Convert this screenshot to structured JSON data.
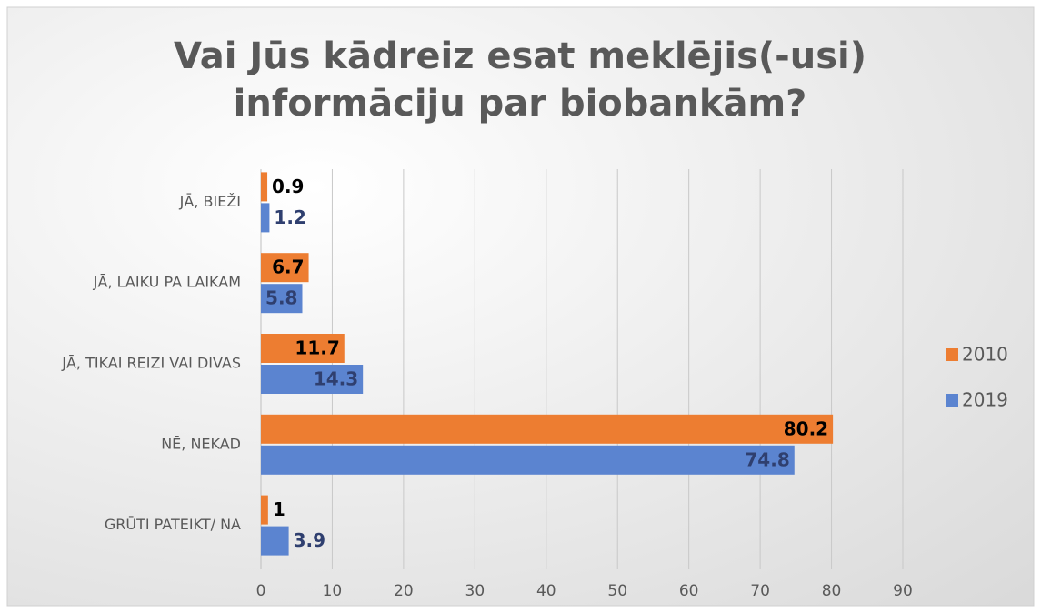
{
  "chart_data": {
    "type": "bar",
    "orientation": "horizontal",
    "title": "Vai Jūs kādreiz esat meklējis(-usi) informāciju par biobankām?",
    "categories": [
      "JĀ, BIEŽI",
      "JĀ, LAIKU PA LAIKAM",
      "JĀ, TIKAI REIZI VAI DIVAS",
      "NĒ, NEKAD",
      "GRŪTI PATEIKT/ NA"
    ],
    "series": [
      {
        "name": "2010",
        "color": "#ed7d31",
        "values": [
          0.9,
          6.7,
          11.7,
          80.2,
          1
        ]
      },
      {
        "name": "2019",
        "color": "#5b84d0",
        "values": [
          1.2,
          5.8,
          14.3,
          74.8,
          3.9
        ]
      }
    ],
    "xlim": [
      0,
      90
    ],
    "xticks": [
      0,
      10,
      20,
      30,
      40,
      50,
      60,
      70,
      80,
      90
    ],
    "grid": true,
    "legend": "right"
  }
}
